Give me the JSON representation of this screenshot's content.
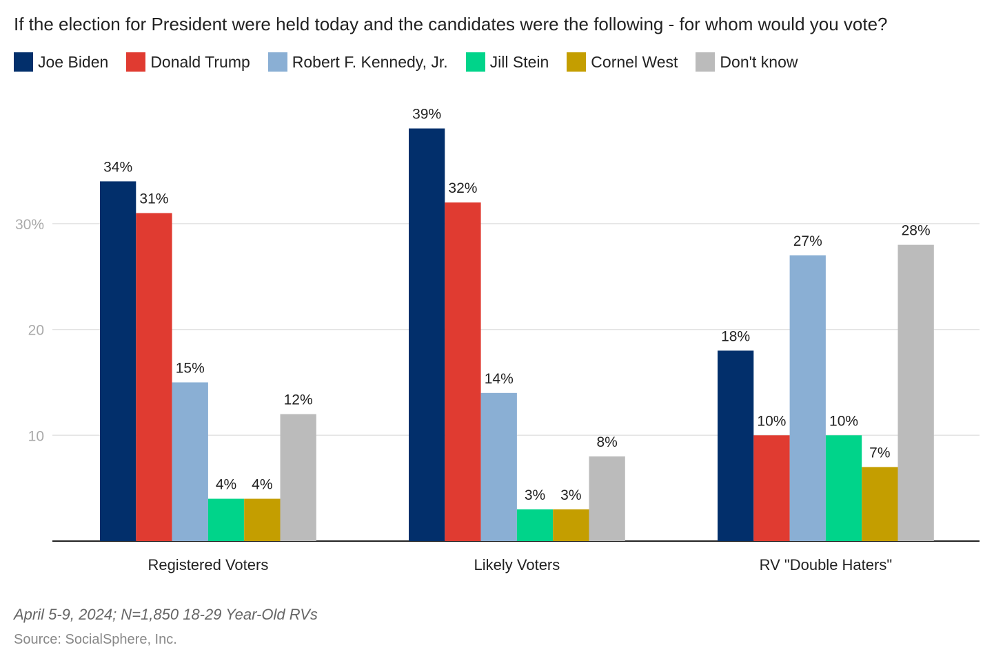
{
  "chart_data": {
    "type": "bar",
    "title": "If the election for President were held today and the candidates were the following - for whom would you vote?",
    "categories": [
      "Registered Voters",
      "Likely Voters",
      "RV \"Double Haters\""
    ],
    "series": [
      {
        "name": "Joe Biden",
        "color": "#022f6b",
        "values": [
          34,
          39,
          18
        ]
      },
      {
        "name": "Donald Trump",
        "color": "#e03b31",
        "values": [
          31,
          32,
          10
        ]
      },
      {
        "name": "Robert F. Kennedy, Jr.",
        "color": "#8aafd4",
        "values": [
          15,
          14,
          27
        ]
      },
      {
        "name": "Jill Stein",
        "color": "#00d48a",
        "values": [
          4,
          3,
          10
        ]
      },
      {
        "name": "Cornel West",
        "color": "#c49e00",
        "values": [
          4,
          3,
          7
        ]
      },
      {
        "name": "Don't know",
        "color": "#bbbbbb",
        "values": [
          12,
          8,
          28
        ]
      }
    ],
    "yticks": [
      {
        "v": 10,
        "label": "10"
      },
      {
        "v": 20,
        "label": "20"
      },
      {
        "v": 30,
        "label": "30%"
      }
    ],
    "ylim": [
      0,
      40
    ],
    "grid": true,
    "legend": "top-left",
    "value_suffix": "%",
    "note": "April 5-9, 2024; N=1,850 18-29 Year-Old RVs",
    "source": "Source: SocialSphere, Inc."
  }
}
